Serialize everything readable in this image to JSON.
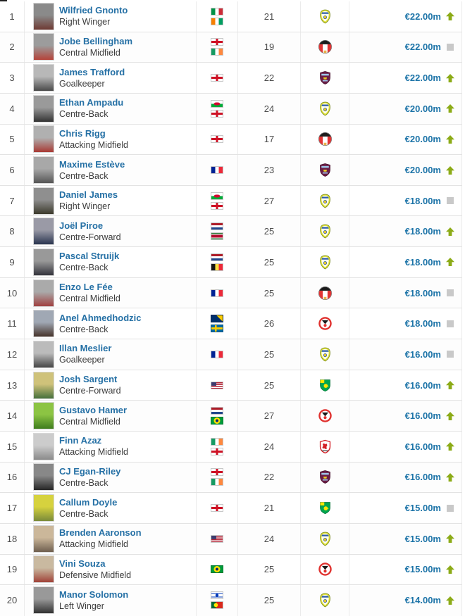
{
  "colors": {
    "link_blue": "#2570a5",
    "value_blue": "#1d74a8",
    "trend_up_green": "#8cab17",
    "trend_same_gray": "#c9c9c9",
    "row_border": "#e3e3e3"
  },
  "icons": {
    "trend_up": "up-arrow-icon",
    "trend_same": "no-change-square-icon"
  },
  "rows": [
    {
      "rank": "1",
      "name": "Wilfried Gnonto",
      "position": "Right Winger",
      "age": "21",
      "nationalities": [
        "Italy",
        "Ivory Coast"
      ],
      "club": "Leeds United",
      "value": "€22.00m",
      "trend": "up"
    },
    {
      "rank": "2",
      "name": "Jobe Bellingham",
      "position": "Central Midfield",
      "age": "19",
      "nationalities": [
        "England",
        "Ireland"
      ],
      "club": "Sunderland AFC",
      "value": "€22.00m",
      "trend": "same"
    },
    {
      "rank": "3",
      "name": "James Trafford",
      "position": "Goalkeeper",
      "age": "22",
      "nationalities": [
        "England"
      ],
      "club": "Burnley FC",
      "value": "€22.00m",
      "trend": "up"
    },
    {
      "rank": "4",
      "name": "Ethan Ampadu",
      "position": "Centre-Back",
      "age": "24",
      "nationalities": [
        "Wales",
        "England"
      ],
      "club": "Leeds United",
      "value": "€20.00m",
      "trend": "up"
    },
    {
      "rank": "5",
      "name": "Chris Rigg",
      "position": "Attacking Midfield",
      "age": "17",
      "nationalities": [
        "England"
      ],
      "club": "Sunderland AFC",
      "value": "€20.00m",
      "trend": "up"
    },
    {
      "rank": "6",
      "name": "Maxime Estève",
      "position": "Centre-Back",
      "age": "23",
      "nationalities": [
        "France"
      ],
      "club": "Burnley FC",
      "value": "€20.00m",
      "trend": "up"
    },
    {
      "rank": "7",
      "name": "Daniel James",
      "position": "Right Winger",
      "age": "27",
      "nationalities": [
        "Wales",
        "England"
      ],
      "club": "Leeds United",
      "value": "€18.00m",
      "trend": "same"
    },
    {
      "rank": "8",
      "name": "Joël Piroe",
      "position": "Centre-Forward",
      "age": "25",
      "nationalities": [
        "Netherlands",
        "Suriname"
      ],
      "club": "Leeds United",
      "value": "€18.00m",
      "trend": "up"
    },
    {
      "rank": "9",
      "name": "Pascal Struijk",
      "position": "Centre-Back",
      "age": "25",
      "nationalities": [
        "Netherlands",
        "Belgium"
      ],
      "club": "Leeds United",
      "value": "€18.00m",
      "trend": "up"
    },
    {
      "rank": "10",
      "name": "Enzo Le Fée",
      "position": "Central Midfield",
      "age": "25",
      "nationalities": [
        "France"
      ],
      "club": "Sunderland AFC",
      "value": "€18.00m",
      "trend": "same"
    },
    {
      "rank": "11",
      "name": "Anel Ahmedhodzic",
      "position": "Centre-Back",
      "age": "26",
      "nationalities": [
        "Bosnia-Herzegovina",
        "Sweden"
      ],
      "club": "Sheffield United",
      "value": "€18.00m",
      "trend": "same"
    },
    {
      "rank": "12",
      "name": "Illan Meslier",
      "position": "Goalkeeper",
      "age": "25",
      "nationalities": [
        "France"
      ],
      "club": "Leeds United",
      "value": "€16.00m",
      "trend": "same"
    },
    {
      "rank": "13",
      "name": "Josh Sargent",
      "position": "Centre-Forward",
      "age": "25",
      "nationalities": [
        "United States"
      ],
      "club": "Norwich City",
      "value": "€16.00m",
      "trend": "up"
    },
    {
      "rank": "14",
      "name": "Gustavo Hamer",
      "position": "Central Midfield",
      "age": "27",
      "nationalities": [
        "Netherlands",
        "Brazil"
      ],
      "club": "Sheffield United",
      "value": "€16.00m",
      "trend": "up"
    },
    {
      "rank": "15",
      "name": "Finn Azaz",
      "position": "Attacking Midfield",
      "age": "24",
      "nationalities": [
        "Ireland",
        "England"
      ],
      "club": "Middlesbrough FC",
      "value": "€16.00m",
      "trend": "up"
    },
    {
      "rank": "16",
      "name": "CJ Egan-Riley",
      "position": "Centre-Back",
      "age": "22",
      "nationalities": [
        "England",
        "Ireland"
      ],
      "club": "Burnley FC",
      "value": "€16.00m",
      "trend": "up"
    },
    {
      "rank": "17",
      "name": "Callum Doyle",
      "position": "Centre-Back",
      "age": "21",
      "nationalities": [
        "England"
      ],
      "club": "Norwich City",
      "value": "€15.00m",
      "trend": "same"
    },
    {
      "rank": "18",
      "name": "Brenden Aaronson",
      "position": "Attacking Midfield",
      "age": "24",
      "nationalities": [
        "United States"
      ],
      "club": "Leeds United",
      "value": "€15.00m",
      "trend": "up"
    },
    {
      "rank": "19",
      "name": "Vini Souza",
      "position": "Defensive Midfield",
      "age": "25",
      "nationalities": [
        "Brazil"
      ],
      "club": "Sheffield United",
      "value": "€15.00m",
      "trend": "up"
    },
    {
      "rank": "20",
      "name": "Manor Solomon",
      "position": "Left Winger",
      "age": "25",
      "nationalities": [
        "Israel",
        "Portugal"
      ],
      "club": "Leeds United",
      "value": "€14.00m",
      "trend": "up"
    }
  ]
}
